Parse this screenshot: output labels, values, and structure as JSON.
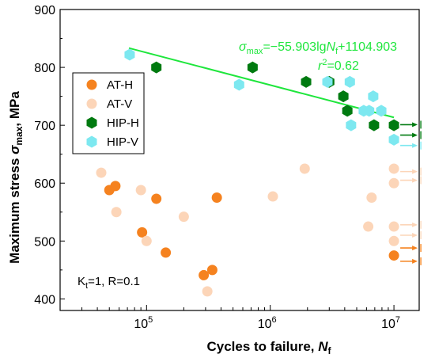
{
  "chart_data": {
    "type": "scatter",
    "title": "",
    "x_scale": "log",
    "xlim": [
      20000,
      16000000
    ],
    "ylim": [
      380,
      900
    ],
    "y_ticks": [
      400,
      500,
      600,
      700,
      800,
      900
    ],
    "x_ticks": [
      {
        "value": 100000,
        "base": "10",
        "exp": "5"
      },
      {
        "value": 1000000,
        "base": "10",
        "exp": "6"
      },
      {
        "value": 10000000,
        "base": "10",
        "exp": "7"
      }
    ],
    "xlabel": {
      "main": "Cycles to failure, ",
      "var": "N",
      "sub": "f"
    },
    "ylabel": {
      "main": "Maximum stress ",
      "var": "σ",
      "sub": "max",
      "unit": ", MPa"
    },
    "series": [
      {
        "name": "AT-H",
        "color": "#f5821f",
        "marker": "circle",
        "points": [
          [
            50000,
            588
          ],
          [
            56000,
            595
          ],
          [
            92000,
            515
          ],
          [
            120000,
            573
          ],
          [
            143000,
            480
          ],
          [
            290000,
            441
          ],
          [
            340000,
            450
          ],
          [
            370000,
            575
          ],
          [
            10000000,
            475
          ]
        ],
        "runouts": [
          [
            10000000,
            488
          ],
          [
            10000000,
            465
          ]
        ]
      },
      {
        "name": "AT-V",
        "color": "#fcd5b8",
        "marker": "circle",
        "points": [
          [
            43000,
            618
          ],
          [
            57000,
            550
          ],
          [
            90000,
            588
          ],
          [
            100000,
            500
          ],
          [
            200000,
            542
          ],
          [
            310000,
            413
          ],
          [
            1050000,
            577
          ],
          [
            1900000,
            625
          ],
          [
            6200000,
            525
          ],
          [
            6600000,
            575
          ],
          [
            10000000,
            625
          ],
          [
            10000000,
            600
          ],
          [
            10000000,
            525
          ],
          [
            10000000,
            500
          ]
        ],
        "runouts": [
          [
            10000000,
            620
          ],
          [
            10000000,
            605
          ],
          [
            10000000,
            528
          ],
          [
            10000000,
            510
          ]
        ]
      },
      {
        "name": "HIP-H",
        "color": "#007a10",
        "marker": "hexagon",
        "points": [
          [
            120000,
            800
          ],
          [
            720000,
            800
          ],
          [
            1950000,
            775
          ],
          [
            3000000,
            775
          ],
          [
            3900000,
            750
          ],
          [
            4200000,
            725
          ],
          [
            6900000,
            700
          ],
          [
            10000000,
            700
          ]
        ],
        "runouts": [
          [
            10000000,
            701
          ],
          [
            10000000,
            683
          ]
        ]
      },
      {
        "name": "HIP-V",
        "color": "#7de8f0",
        "marker": "hexagon",
        "points": [
          [
            73000,
            822
          ],
          [
            560000,
            770
          ],
          [
            2900000,
            775
          ],
          [
            4400000,
            775
          ],
          [
            4500000,
            700
          ],
          [
            5700000,
            725
          ],
          [
            6300000,
            725
          ],
          [
            6800000,
            750
          ],
          [
            7900000,
            725
          ],
          [
            10000000,
            675
          ]
        ],
        "runouts": [
          [
            10000000,
            665
          ]
        ]
      }
    ],
    "fit_line": {
      "color": "#1ee63c",
      "intercept": 1104.903,
      "slope": -55.903,
      "x_range": [
        72000,
        10000000
      ],
      "equation": {
        "lhs_var": "σ",
        "lhs_sub": "max",
        "mid": "=−55.903lg",
        "var2": "N",
        "sub2": "f",
        "rhs": "+1104.903",
        "r2_var": "r",
        "r2_sup": "2",
        "r2_rest": "=0.62"
      }
    },
    "annotation": {
      "prefix": "K",
      "sub": "t",
      "rest": "=1, R=0.1"
    },
    "legend_position": "upper-left",
    "grid": false
  }
}
